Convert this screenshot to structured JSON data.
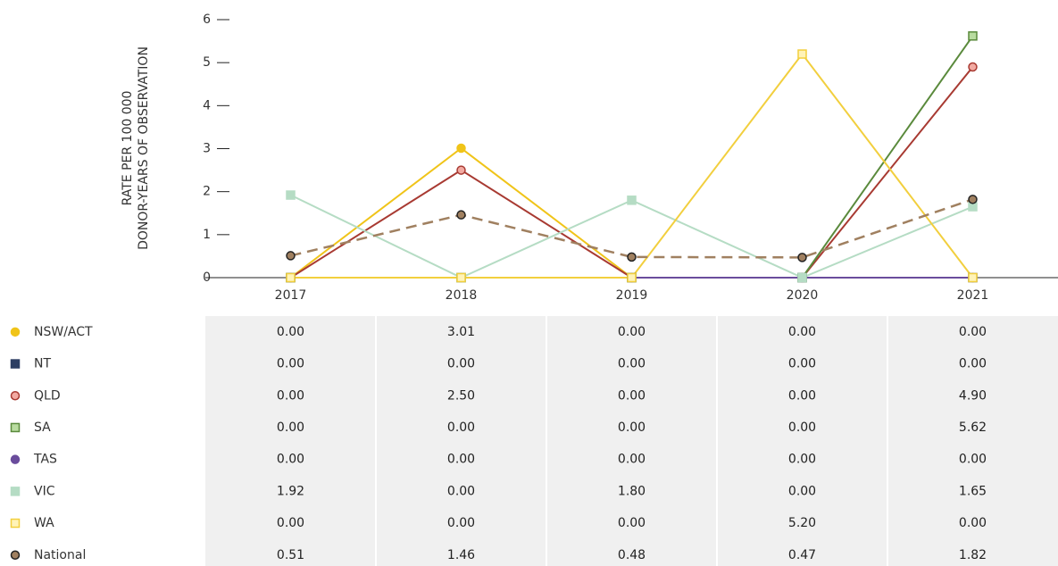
{
  "chart_data": {
    "type": "line",
    "ylabel": [
      "RATE PER 100 000",
      "DONOR-YEARS OF OBSERVATION"
    ],
    "categories": [
      "2017",
      "2018",
      "2019",
      "2020",
      "2021"
    ],
    "ylim": [
      0,
      6
    ],
    "yticks": [
      0,
      1,
      2,
      3,
      4,
      5,
      6
    ],
    "series": [
      {
        "name": "NSW/ACT",
        "color": "#f0c419",
        "marker": "circle",
        "marker_fill": "#f0c419",
        "values": [
          0,
          3.01,
          0,
          0,
          0
        ],
        "value_labels": [
          "0.00",
          "3.01",
          "0.00",
          "0.00",
          "0.00"
        ]
      },
      {
        "name": "NT",
        "color": "#2d3e63",
        "marker": "square",
        "marker_fill": "#2d3e63",
        "values": [
          0,
          0,
          0,
          0,
          0
        ],
        "value_labels": [
          "0.00",
          "0.00",
          "0.00",
          "0.00",
          "0.00"
        ]
      },
      {
        "name": "QLD",
        "color": "#a83a32",
        "marker": "circle",
        "marker_fill": "#f2aaa2",
        "values": [
          0,
          2.5,
          0,
          0,
          4.9
        ],
        "value_labels": [
          "0.00",
          "2.50",
          "0.00",
          "0.00",
          "4.90"
        ]
      },
      {
        "name": "SA",
        "color": "#5a8a3c",
        "marker": "square",
        "marker_fill": "#b9dca0",
        "values": [
          0,
          0,
          0,
          0,
          5.62
        ],
        "value_labels": [
          "0.00",
          "0.00",
          "0.00",
          "0.00",
          "5.62"
        ]
      },
      {
        "name": "TAS",
        "color": "#6a4c9c",
        "marker": "circle",
        "marker_fill": "#6a4c9c",
        "values": [
          0,
          0,
          0,
          0,
          0
        ],
        "value_labels": [
          "0.00",
          "0.00",
          "0.00",
          "0.00",
          "0.00"
        ]
      },
      {
        "name": "VIC",
        "color": "#b5dcc4",
        "marker": "square",
        "marker_fill": "#b5dcc4",
        "values": [
          1.92,
          0,
          1.8,
          0,
          1.65
        ],
        "value_labels": [
          "1.92",
          "0.00",
          "1.80",
          "0.00",
          "1.65"
        ]
      },
      {
        "name": "WA",
        "color": "#f2cf3e",
        "marker": "square",
        "marker_fill": "#fff3b8",
        "values": [
          0,
          0,
          0,
          5.2,
          0
        ],
        "value_labels": [
          "0.00",
          "0.00",
          "0.00",
          "5.20",
          "0.00"
        ]
      },
      {
        "name": "National",
        "color": "#a08060",
        "marker": "circle",
        "marker_fill": "#a08060",
        "dashed": true,
        "values": [
          0.51,
          1.46,
          0.48,
          0.47,
          1.82
        ],
        "value_labels": [
          "0.51",
          "1.46",
          "0.48",
          "0.47",
          "1.82"
        ]
      }
    ]
  }
}
